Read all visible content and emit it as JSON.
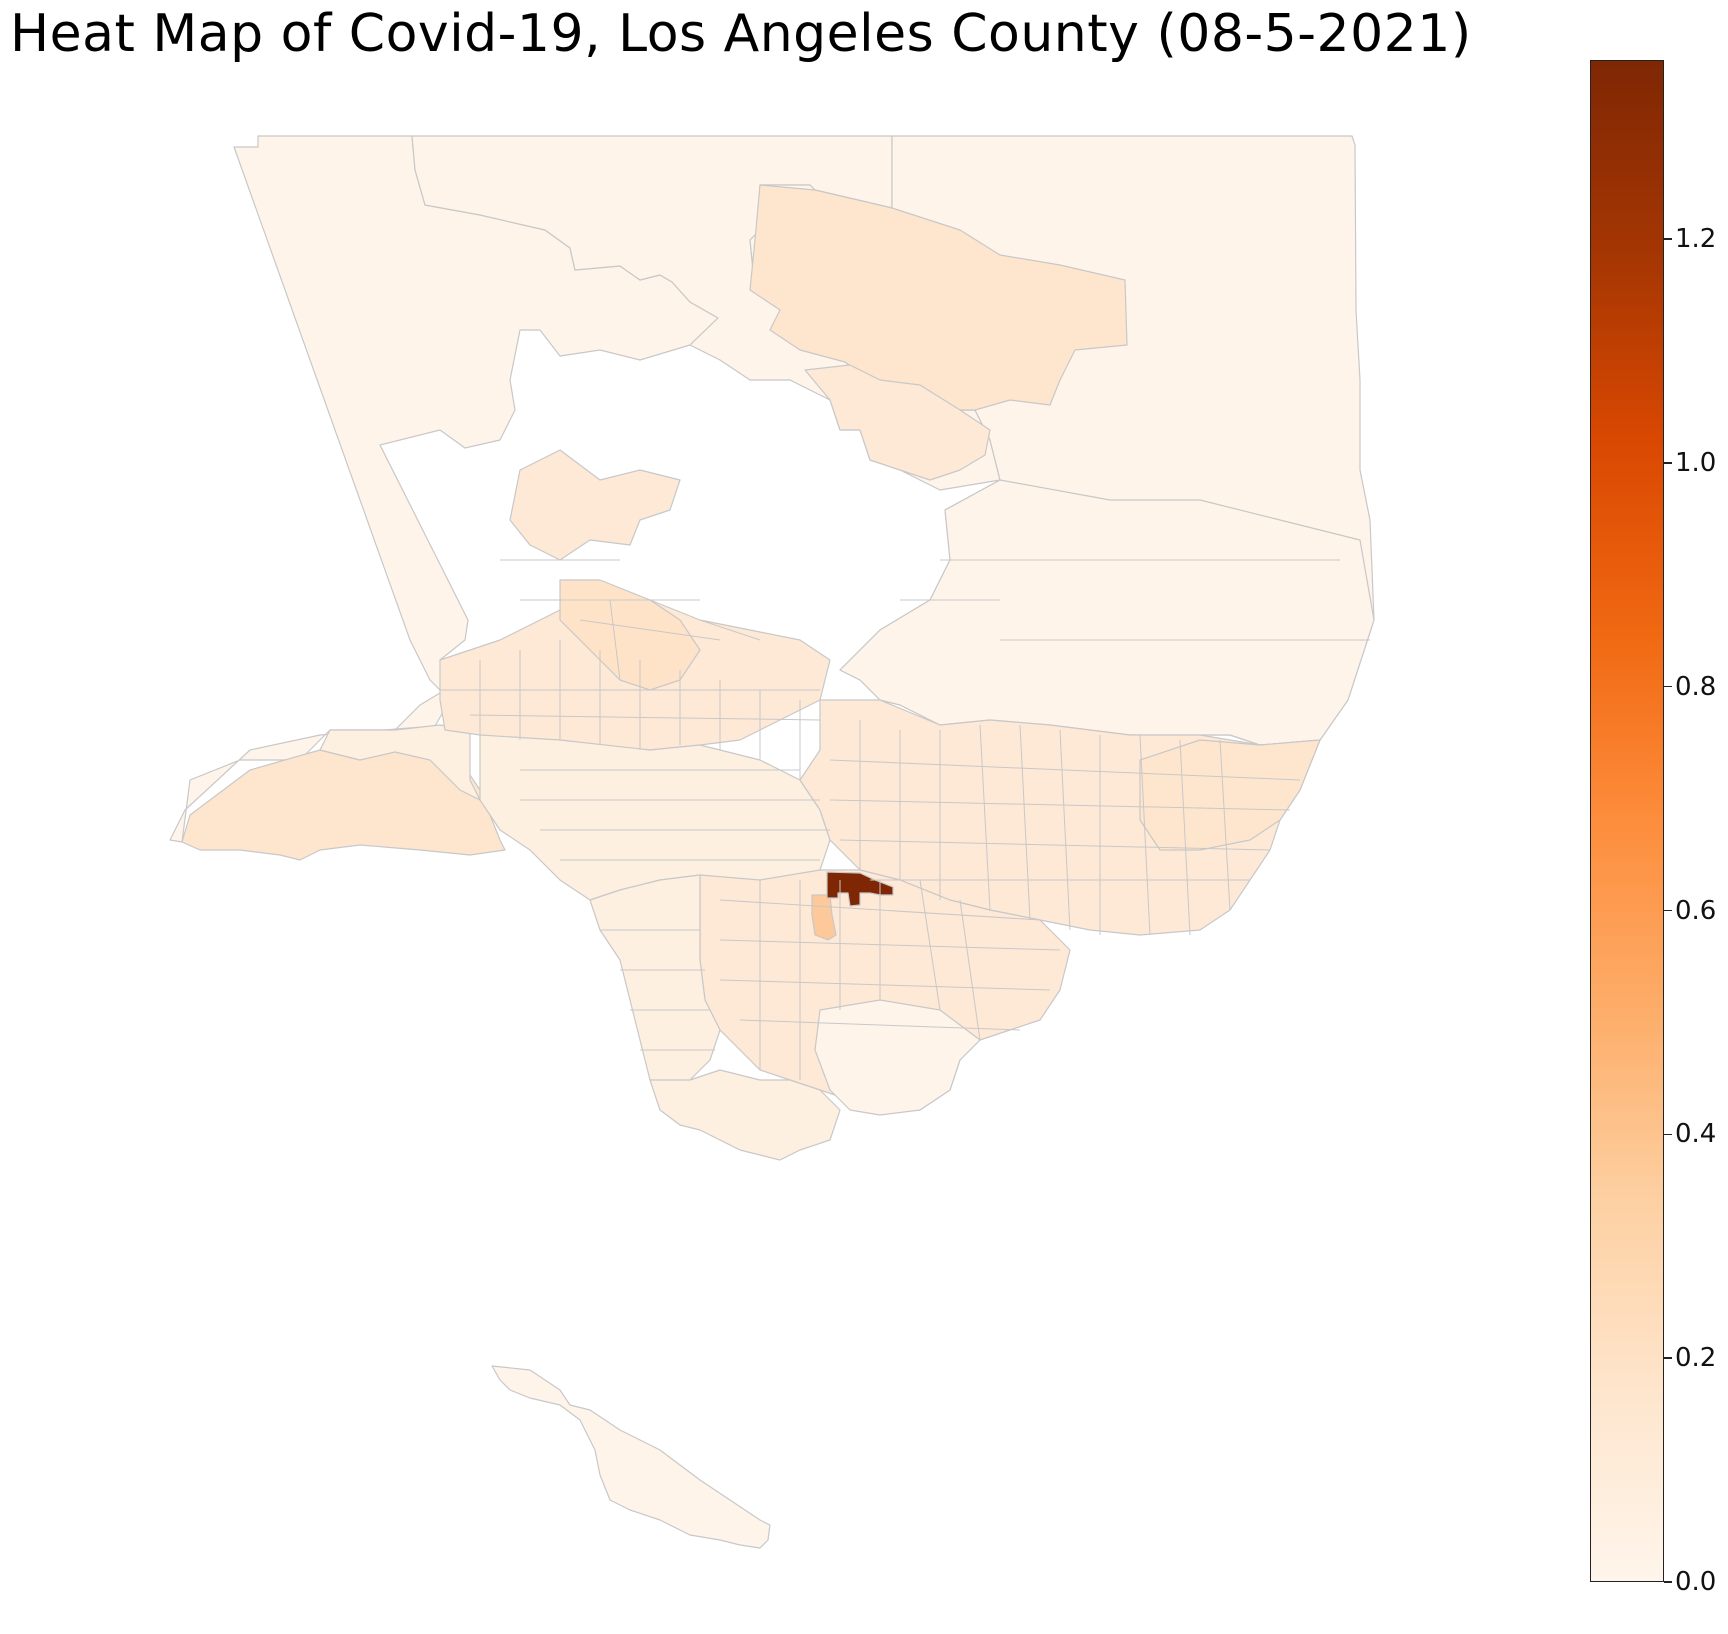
{
  "title": "Heat Map of Covid-19, Los Angeles County (08-5-2021)",
  "colorbar": {
    "min": 0.0,
    "max": 1.36,
    "ticks": [
      {
        "value": 0.0,
        "label": "0.0"
      },
      {
        "value": 0.2,
        "label": "0.2"
      },
      {
        "value": 0.4,
        "label": "0.4"
      },
      {
        "value": 0.6,
        "label": "0.6"
      },
      {
        "value": 0.8,
        "label": "0.8"
      },
      {
        "value": 1.0,
        "label": "1.0"
      },
      {
        "value": 1.2,
        "label": "1.2"
      }
    ],
    "colormap": [
      "#fff5eb",
      "#fee6ce",
      "#fdd0a2",
      "#fdae6b",
      "#fd8d3c",
      "#f16913",
      "#d94801",
      "#a63603",
      "#7f2704"
    ]
  },
  "colors": {
    "zero": "#fff5eb",
    "very_low": "#fef0e1",
    "low": "#fee9d6",
    "medium_low": "#fde0c4",
    "medium": "#fdc99a",
    "max": "#7f2704",
    "border": "#c8c8c8"
  }
}
